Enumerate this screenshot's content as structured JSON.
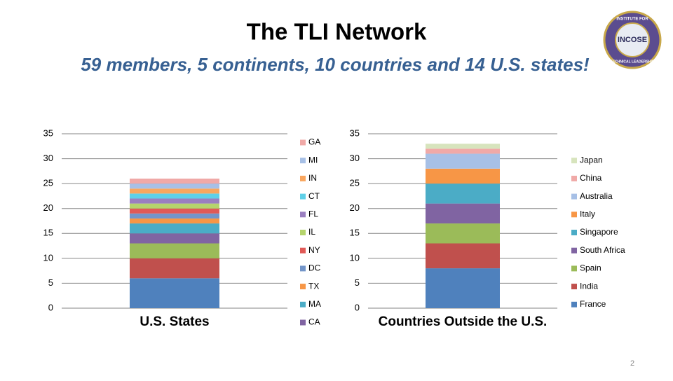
{
  "header": {
    "title": "The TLI Network",
    "subtitle": "59 members, 5 continents, 10 countries and 14 U.S. states!"
  },
  "logo": {
    "name": "INCOSE",
    "arc_top": "INSTITUTE FOR",
    "arc_bottom": "TECHNICAL LEADERSHIP"
  },
  "page_number": "2",
  "chart_data": [
    {
      "type": "stacked-bar",
      "categories": [
        "U.S. States"
      ],
      "ylim": [
        0,
        35
      ],
      "yticks": [
        0,
        5,
        10,
        15,
        20,
        25,
        30,
        35
      ],
      "grid": true,
      "legend": "right",
      "series": [
        {
          "name": null,
          "color": "#4f81bd",
          "values": [
            6
          ]
        },
        {
          "name": null,
          "color": "#c0504d",
          "values": [
            4
          ]
        },
        {
          "name": null,
          "color": "#9bbb59",
          "values": [
            3
          ]
        },
        {
          "name": "CA",
          "color": "#8064a2",
          "values": [
            2
          ]
        },
        {
          "name": "MA",
          "color": "#4bacc6",
          "values": [
            2
          ]
        },
        {
          "name": "TX",
          "color": "#f79646",
          "values": [
            1
          ]
        },
        {
          "name": "DC",
          "color": "#7395c9",
          "values": [
            1
          ]
        },
        {
          "name": "NY",
          "color": "#e05a57",
          "values": [
            1
          ]
        },
        {
          "name": "IL",
          "color": "#b5d46c",
          "values": [
            1
          ]
        },
        {
          "name": "FL",
          "color": "#9a7fc0",
          "values": [
            1
          ]
        },
        {
          "name": "CT",
          "color": "#5fd0e8",
          "values": [
            1
          ]
        },
        {
          "name": "IN",
          "color": "#f9a65e",
          "values": [
            1
          ]
        },
        {
          "name": "MI",
          "color": "#a7c0e6",
          "values": [
            1
          ]
        },
        {
          "name": "GA",
          "color": "#f0a9a7",
          "values": [
            1
          ]
        }
      ]
    },
    {
      "type": "stacked-bar",
      "categories": [
        "Countries Outside the U.S."
      ],
      "ylim": [
        0,
        35
      ],
      "yticks": [
        0,
        5,
        10,
        15,
        20,
        25,
        30,
        35
      ],
      "grid": true,
      "legend": "right",
      "series": [
        {
          "name": "France",
          "color": "#4f81bd",
          "values": [
            8
          ]
        },
        {
          "name": "India",
          "color": "#c0504d",
          "values": [
            5
          ]
        },
        {
          "name": "Spain",
          "color": "#9bbb59",
          "values": [
            4
          ]
        },
        {
          "name": "South Africa",
          "color": "#8064a2",
          "values": [
            4
          ]
        },
        {
          "name": "Singapore",
          "color": "#4bacc6",
          "values": [
            4
          ]
        },
        {
          "name": "Italy",
          "color": "#f79646",
          "values": [
            3
          ]
        },
        {
          "name": "Australia",
          "color": "#a7c0e6",
          "values": [
            3
          ]
        },
        {
          "name": "China",
          "color": "#f0a9a7",
          "values": [
            1
          ]
        },
        {
          "name": "Japan",
          "color": "#d7e4bd",
          "values": [
            1
          ]
        }
      ]
    }
  ]
}
